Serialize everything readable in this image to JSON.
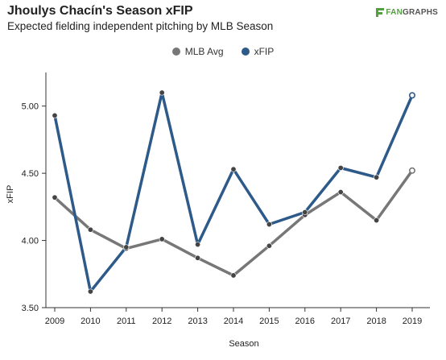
{
  "header": {
    "title": "Jhoulys Chacín's Season xFIP",
    "subtitle": "Expected fielding independent pitching by MLB Season",
    "logo_text_a": "FAN",
    "logo_text_b": "GRAPHS"
  },
  "colors": {
    "mlb_avg": "#777777",
    "xfip": "#2e5a8a",
    "axis": "#333333"
  },
  "chart_data": {
    "type": "line",
    "title": "Jhoulys Chacín's Season xFIP",
    "subtitle": "Expected fielding independent pitching by MLB Season",
    "xlabel": "Season",
    "ylabel": "xFIP",
    "ylim": [
      3.5,
      5.25
    ],
    "yticks": [
      "3.50",
      "4.00",
      "4.50",
      "5.00"
    ],
    "yticks_values": [
      3.5,
      4.0,
      4.5,
      5.0
    ],
    "x": [
      "2009",
      "2010",
      "2011",
      "2012",
      "2013",
      "2014",
      "2015",
      "2016",
      "2017",
      "2018",
      "2019"
    ],
    "legend_position": "top-center",
    "grid": false,
    "series": [
      {
        "name": "MLB Avg",
        "color": "#777777",
        "values": [
          4.32,
          4.08,
          3.94,
          4.01,
          3.87,
          3.74,
          3.96,
          4.19,
          4.36,
          4.15,
          4.52
        ]
      },
      {
        "name": "xFIP",
        "color": "#2e5a8a",
        "values": [
          4.93,
          3.62,
          3.95,
          5.1,
          3.97,
          4.53,
          4.12,
          4.21,
          4.54,
          4.47,
          5.08
        ]
      }
    ]
  }
}
